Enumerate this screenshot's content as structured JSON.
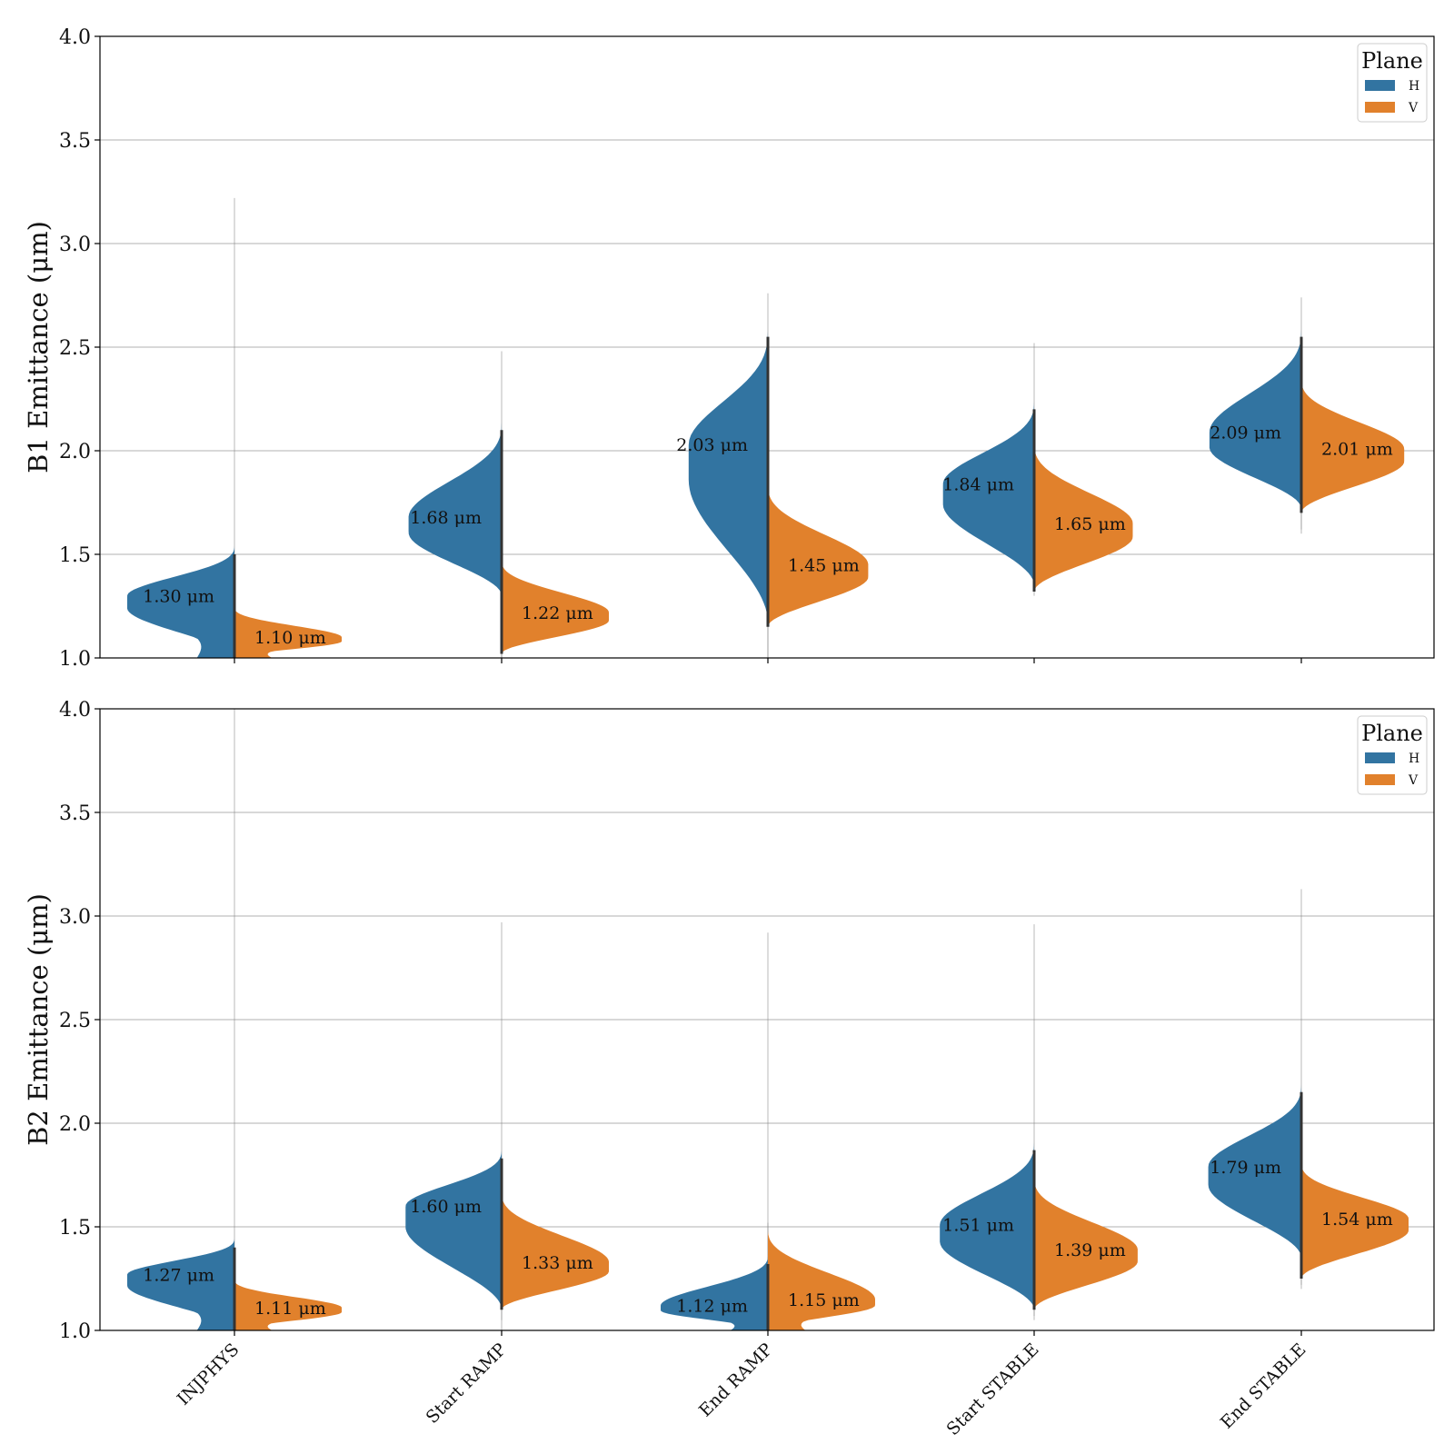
{
  "chart_data": [
    {
      "type": "violin",
      "split": true,
      "ylabel": "B1 Emittance (μm)",
      "ylim": [
        1.0,
        4.0
      ],
      "yticks": [
        "1.0",
        "1.5",
        "2.0",
        "2.5",
        "3.0",
        "3.5",
        "4.0"
      ],
      "grid": "y",
      "categories": [
        "INJPHYS",
        "Start RAMP",
        "End RAMP",
        "Start STABLE",
        "End STABLE"
      ],
      "legend": {
        "title": "Plane",
        "position": "top-right",
        "entries": [
          "H",
          "V"
        ]
      },
      "colors": {
        "H": "#3274a1",
        "V": "#e1812c"
      },
      "series": [
        {
          "name": "H",
          "medians": [
            1.3,
            1.68,
            2.03,
            1.84,
            2.09
          ],
          "median_labels": [
            "1.30 μm",
            "1.68 μm",
            "2.03 μm",
            "1.84 μm",
            "2.09 μm"
          ],
          "range": [
            [
              1.0,
              3.22
            ],
            [
              1.0,
              2.48
            ],
            [
              1.0,
              2.76
            ],
            [
              1.32,
              2.52
            ],
            [
              1.62,
              2.74
            ]
          ],
          "body_range": [
            [
              1.0,
              1.55
            ],
            [
              1.3,
              2.15
            ],
            [
              1.17,
              2.6
            ],
            [
              1.35,
              2.25
            ],
            [
              1.72,
              2.6
            ]
          ]
        },
        {
          "name": "V",
          "medians": [
            1.1,
            1.22,
            1.45,
            1.65,
            2.01
          ],
          "median_labels": [
            "1.10 μm",
            "1.22 μm",
            "1.45 μm",
            "1.65 μm",
            "2.01 μm"
          ],
          "range": [
            [
              1.0,
              1.25
            ],
            [
              1.0,
              1.5
            ],
            [
              1.0,
              1.85
            ],
            [
              1.3,
              2.1
            ],
            [
              1.6,
              2.36
            ]
          ],
          "body_range": [
            [
              1.0,
              1.25
            ],
            [
              1.02,
              1.48
            ],
            [
              1.15,
              1.85
            ],
            [
              1.32,
              2.05
            ],
            [
              1.7,
              2.36
            ]
          ]
        }
      ]
    },
    {
      "type": "violin",
      "split": true,
      "ylabel": "B2 Emittance (μm)",
      "ylim": [
        1.0,
        4.0
      ],
      "yticks": [
        "1.0",
        "1.5",
        "2.0",
        "2.5",
        "3.0",
        "3.5",
        "4.0"
      ],
      "grid": "y",
      "categories": [
        "INJPHYS",
        "Start RAMP",
        "End RAMP",
        "Start STABLE",
        "End STABLE"
      ],
      "legend": {
        "title": "Plane",
        "position": "top-right",
        "entries": [
          "H",
          "V"
        ]
      },
      "colors": {
        "H": "#3274a1",
        "V": "#e1812c"
      },
      "series": [
        {
          "name": "H",
          "medians": [
            1.27,
            1.6,
            1.12,
            1.51,
            1.79
          ],
          "median_labels": [
            "1.27 μm",
            "1.60 μm",
            "1.12 μm",
            "1.51 μm",
            "1.79 μm"
          ],
          "range": [
            [
              1.0,
              4.0
            ],
            [
              1.0,
              2.97
            ],
            [
              1.0,
              2.92
            ],
            [
              1.05,
              2.96
            ],
            [
              1.2,
              3.13
            ]
          ],
          "body_range": [
            [
              1.0,
              1.45
            ],
            [
              1.1,
              1.88
            ],
            [
              1.0,
              1.37
            ],
            [
              1.1,
              1.92
            ],
            [
              1.35,
              2.2
            ]
          ]
        },
        {
          "name": "V",
          "medians": [
            1.11,
            1.33,
            1.15,
            1.39,
            1.54
          ],
          "median_labels": [
            "1.11 μm",
            "1.33 μm",
            "1.15 μm",
            "1.39 μm",
            "1.54 μm"
          ],
          "range": [
            [
              1.0,
              1.25
            ],
            [
              1.05,
              1.7
            ],
            [
              1.0,
              1.52
            ],
            [
              1.07,
              1.78
            ],
            [
              1.22,
              1.85
            ]
          ],
          "body_range": [
            [
              1.0,
              1.25
            ],
            [
              1.1,
              1.68
            ],
            [
              1.0,
              1.5
            ],
            [
              1.1,
              1.75
            ],
            [
              1.25,
              1.82
            ]
          ]
        }
      ]
    }
  ]
}
